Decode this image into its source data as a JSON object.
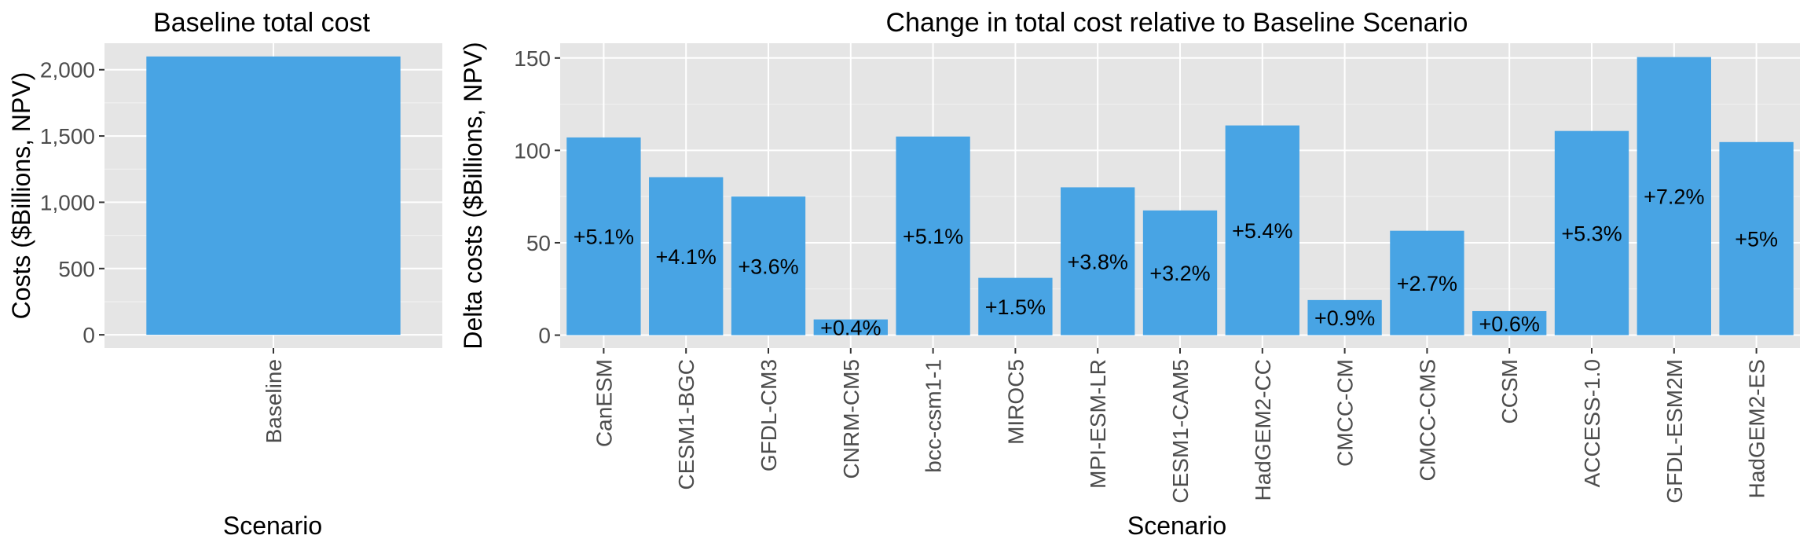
{
  "colors": {
    "bar": "#48a4e4",
    "panel": "#e5e5e5",
    "grid": "#ffffff"
  },
  "chart_data": [
    {
      "type": "bar",
      "title": "Baseline total cost",
      "xlabel": "Scenario",
      "ylabel": "Costs ($Billions, NPV)",
      "categories": [
        "Baseline"
      ],
      "values": [
        2100
      ],
      "ylim": [
        -100,
        2200
      ],
      "yticks": [
        0,
        500,
        1000,
        1500,
        2000
      ],
      "ytick_labels": [
        "0",
        "500",
        "1,000",
        "1,500",
        "2,000"
      ],
      "grid": true,
      "legend": "none"
    },
    {
      "type": "bar",
      "title": "Change in total cost relative to Baseline Scenario",
      "xlabel": "Scenario",
      "ylabel": "Delta costs ($Billions, NPV)",
      "categories": [
        "CanESM",
        "CESM1-BGC",
        "GFDL-CM3",
        "CNRM-CM5",
        "bcc-csm1-1",
        "MIROC5",
        "MPI-ESM-LR",
        "CESM1-CAM5",
        "HadGEM2-CC",
        "CMCC-CM",
        "CMCC-CMS",
        "CCSM",
        "ACCESS-1.0",
        "GFDL-ESM2M",
        "HadGEM2-ES"
      ],
      "values": [
        107,
        85.5,
        75,
        8.5,
        107.5,
        31,
        80,
        67.5,
        113.5,
        19,
        56.5,
        13,
        110.5,
        150.5,
        104.5
      ],
      "data_labels": [
        "+5.1%",
        "+4.1%",
        "+3.6%",
        "+0.4%",
        "+5.1%",
        "+1.5%",
        "+3.8%",
        "+3.2%",
        "+5.4%",
        "+0.9%",
        "+2.7%",
        "+0.6%",
        "+5.3%",
        "+7.2%",
        "+5%"
      ],
      "ylim": [
        -7,
        158
      ],
      "yticks": [
        0,
        50,
        100,
        150
      ],
      "ytick_labels": [
        "0",
        "50",
        "100",
        "150"
      ],
      "grid": true,
      "legend": "none"
    }
  ]
}
